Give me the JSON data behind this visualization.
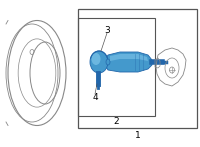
{
  "bg_color": "#ffffff",
  "line_color": "#888888",
  "dark_line": "#555555",
  "blue_color": "#4499cc",
  "blue_dark": "#2266aa",
  "blue_light": "#88ccee",
  "label1": "1",
  "label2": "2",
  "label3": "3",
  "label4": "4",
  "fig_width": 2.0,
  "fig_height": 1.47,
  "dpi": 100
}
